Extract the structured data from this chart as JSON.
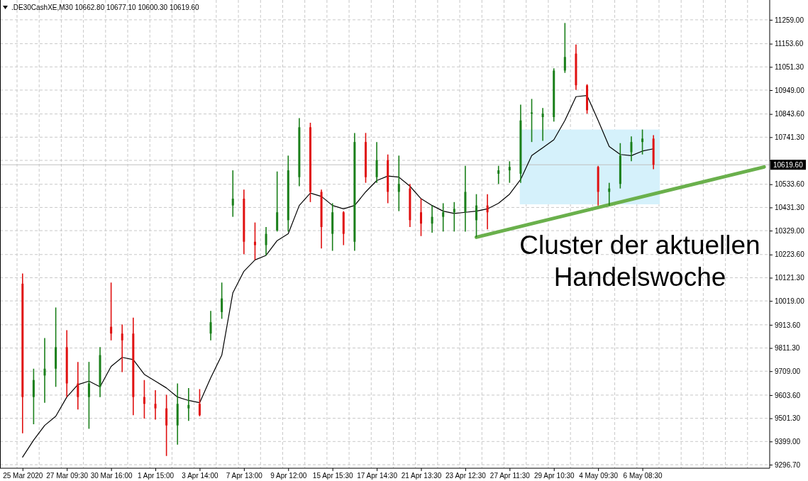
{
  "chart_data": {
    "type": "candlestick",
    "title": ".DE30CashXE,M30 10662.80 10677.10 10600.30 10619.60",
    "categories": [
      "25 Mar 2020",
      null,
      null,
      null,
      "27 Mar 09:30",
      null,
      null,
      null,
      "30 Mar 16:00",
      null,
      null,
      null,
      "1 Apr 15:00",
      null,
      null,
      null,
      "3 Apr 14:00",
      null,
      null,
      null,
      "7 Apr 13:00",
      null,
      null,
      null,
      "9 Apr 12:00",
      null,
      null,
      null,
      "15 Apr 15:30",
      null,
      null,
      null,
      "17 Apr 14:30",
      null,
      null,
      null,
      "21 Apr 13:30",
      null,
      null,
      null,
      "23 Apr 12:30",
      null,
      null,
      null,
      "27 Apr 11:30",
      null,
      null,
      null,
      "29 Apr 10:30",
      null,
      null,
      null,
      "4 May 09:30",
      null,
      null,
      null,
      "6 May 08:30",
      null,
      null,
      null,
      null,
      null,
      null,
      null,
      null,
      null,
      null,
      null
    ],
    "ohlc": [
      [
        10095,
        10140,
        9435,
        9595
      ],
      [
        9595,
        9720,
        9475,
        9670
      ],
      [
        9690,
        9855,
        9570,
        9720
      ],
      [
        9720,
        9990,
        9640,
        9815
      ],
      [
        9815,
        9890,
        9595,
        9655
      ],
      [
        9655,
        9750,
        9540,
        9595
      ],
      [
        9595,
        9750,
        9455,
        9655
      ],
      [
        9640,
        9815,
        9595,
        9780
      ],
      [
        9905,
        10100,
        9845,
        9875
      ],
      [
        9875,
        9915,
        9705,
        9845
      ],
      [
        9875,
        9945,
        9515,
        9595
      ],
      [
        9595,
        9670,
        9500,
        9565
      ],
      [
        9565,
        9625,
        9495,
        9545
      ],
      [
        9545,
        9605,
        9335,
        9470
      ],
      [
        9470,
        9655,
        9385,
        9565
      ],
      [
        9545,
        9635,
        9490,
        9560
      ],
      [
        9565,
        9630,
        9510,
        9515
      ],
      [
        9875,
        9975,
        9845,
        9925
      ],
      [
        9970,
        10100,
        9940,
        10030
      ],
      [
        10440,
        10595,
        10390,
        10470
      ],
      [
        10470,
        10510,
        10225,
        10280
      ],
      [
        10280,
        10365,
        10200,
        10265
      ],
      [
        10265,
        10345,
        10220,
        10315
      ],
      [
        10330,
        10590,
        10325,
        10410
      ],
      [
        10375,
        10660,
        10325,
        10595
      ],
      [
        10565,
        10825,
        10525,
        10785
      ],
      [
        10785,
        10805,
        10455,
        10500
      ],
      [
        10500,
        10510,
        10250,
        10345
      ],
      [
        10315,
        10450,
        10240,
        10410
      ],
      [
        10410,
        10415,
        10265,
        10315
      ],
      [
        10280,
        10760,
        10240,
        10720
      ],
      [
        10720,
        10760,
        10540,
        10565
      ],
      [
        10565,
        10720,
        10540,
        10640
      ],
      [
        10640,
        10665,
        10450,
        10500
      ],
      [
        10500,
        10660,
        10415,
        10535
      ],
      [
        10515,
        10535,
        10345,
        10375
      ],
      [
        10410,
        10470,
        10305,
        10360
      ],
      [
        10360,
        10440,
        10320,
        10390
      ],
      [
        10390,
        10450,
        10325,
        10410
      ],
      [
        10410,
        10455,
        10325,
        10425
      ],
      [
        10410,
        10615,
        10325,
        10500
      ],
      [
        10375,
        10490,
        10300,
        10440
      ],
      [
        10440,
        10490,
        10335,
        10410
      ],
      [
        10580,
        10615,
        10535,
        10595
      ],
      [
        10595,
        10635,
        10540,
        10610
      ],
      [
        10580,
        10885,
        10540,
        10815
      ],
      [
        10845,
        10910,
        10720,
        10850
      ],
      [
        10830,
        10870,
        10725,
        10845
      ],
      [
        10830,
        11045,
        10810,
        11035
      ],
      [
        11035,
        11245,
        11025,
        11095
      ],
      [
        11110,
        11150,
        10950,
        10970
      ],
      [
        10970,
        10975,
        10845,
        10860
      ],
      [
        10610,
        10615,
        10440,
        10500
      ],
      [
        10500,
        10540,
        10440,
        10515
      ],
      [
        10535,
        10715,
        10515,
        10660
      ],
      [
        10675,
        10745,
        10635,
        10720
      ],
      [
        10720,
        10775,
        10665,
        10735
      ],
      [
        10735,
        10750,
        10600,
        10619.6
      ],
      null,
      null,
      null,
      null,
      null,
      null,
      null,
      null,
      null,
      null
    ],
    "colors": [
      "#e01010",
      "#1a7f1a",
      "#1a7f1a",
      "#1a7f1a",
      "#e01010",
      "#e01010",
      "#1a7f1a",
      "#1a7f1a",
      "#e01010",
      "#e01010",
      "#e01010",
      "#e01010",
      "#e01010",
      "#e01010",
      "#1a7f1a",
      "#1a7f1a",
      "#e01010",
      "#1a7f1a",
      "#1a7f1a",
      "#1a7f1a",
      "#e01010",
      "#e01010",
      "#1a7f1a",
      "#1a7f1a",
      "#1a7f1a",
      "#1a7f1a",
      "#e01010",
      "#e01010",
      "#1a7f1a",
      "#e01010",
      "#1a7f1a",
      "#e01010",
      "#1a7f1a",
      "#e01010",
      "#1a7f1a",
      "#e01010",
      "#e01010",
      "#1a7f1a",
      "#1a7f1a",
      "#1a7f1a",
      "#1a7f1a",
      "#1a7f1a",
      "#e01010",
      "#1a7f1a",
      "#1a7f1a",
      "#1a7f1a",
      "#1a7f1a",
      "#1a7f1a",
      "#1a7f1a",
      "#1a7f1a",
      "#e01010",
      "#e01010",
      "#e01010",
      "#1a7f1a",
      "#1a7f1a",
      "#1a7f1a",
      "#1a7f1a",
      "#e01010",
      null,
      null,
      null,
      null,
      null,
      null,
      null,
      null,
      null,
      null
    ],
    "series": [
      {
        "type": "line",
        "color": "#000000",
        "values": [
          9330,
          9405,
          9470,
          9510,
          9595,
          9650,
          9665,
          9640,
          9730,
          9770,
          9760,
          9695,
          9665,
          9635,
          9595,
          9580,
          9570,
          9680,
          9780,
          10055,
          10150,
          10200,
          10220,
          10285,
          10315,
          10440,
          10495,
          10480,
          10440,
          10425,
          10440,
          10500,
          10550,
          10570,
          10565,
          10525,
          10470,
          10440,
          10415,
          10405,
          10410,
          10415,
          10425,
          10450,
          10490,
          10555,
          10660,
          10695,
          10730,
          10815,
          10920,
          10925,
          10815,
          10700,
          10665,
          10660,
          10680,
          10690,
          null,
          null,
          null,
          null,
          null,
          null,
          null,
          null,
          null,
          null
        ]
      },
      {
        "type": "line",
        "color": "#6ab04c",
        "values": [
          null,
          null,
          null,
          null,
          null,
          null,
          null,
          null,
          null,
          null,
          null,
          null,
          null,
          null,
          null,
          null,
          null,
          null,
          null,
          null,
          null,
          null,
          null,
          null,
          null,
          null,
          null,
          null,
          null,
          null,
          null,
          null,
          null,
          null,
          null,
          null,
          null,
          null,
          null,
          null,
          null,
          10300,
          null,
          null,
          null,
          null,
          null,
          null,
          null,
          null,
          null,
          null,
          null,
          null,
          null,
          null,
          null,
          null,
          null,
          null,
          null,
          null,
          null,
          null,
          null,
          null,
          null,
          10610
        ]
      }
    ],
    "ylim": [
      9281,
      11337
    ],
    "yticks": [
      {
        "value": 11259,
        "label": "11259.00"
      },
      {
        "value": 11153.6,
        "label": "11153.60"
      },
      {
        "value": 11051.3,
        "label": "11051.30"
      },
      {
        "value": 10949,
        "label": "10949.00"
      },
      {
        "value": 10843.6,
        "label": "10843.60"
      },
      {
        "value": 10741.3,
        "label": "10741.30"
      },
      {
        "value": 10639,
        "label": null
      },
      {
        "value": 10533.6,
        "label": "10533.60"
      },
      {
        "value": 10431.3,
        "label": "10431.30"
      },
      {
        "value": 10329,
        "label": "10329.00"
      },
      {
        "value": 10223.6,
        "label": "10223.60"
      },
      {
        "value": 10121.3,
        "label": "10121.30"
      },
      {
        "value": 10019,
        "label": "10019.00"
      },
      {
        "value": 9913.6,
        "label": "9913.60"
      },
      {
        "value": 9811.3,
        "label": "9811.30"
      },
      {
        "value": 9709,
        "label": "9709.00"
      },
      {
        "value": 9603.6,
        "label": "9603.60"
      },
      {
        "value": 9501.3,
        "label": "9501.30"
      },
      {
        "value": 9399,
        "label": "9399.00"
      },
      {
        "value": 9296.7,
        "label": "9296.70"
      }
    ],
    "grid": true,
    "ref_lines": [
      {
        "axis": "y",
        "value": 10619.6,
        "label": "10619.60",
        "color": "#c0c0c0"
      }
    ],
    "bands": [
      {
        "axis": "y",
        "from": 10445,
        "to": 10775,
        "color": "#d5f1fb"
      }
    ],
    "annotations": [
      "Cluster der aktuellen\nHandelswoche"
    ]
  }
}
